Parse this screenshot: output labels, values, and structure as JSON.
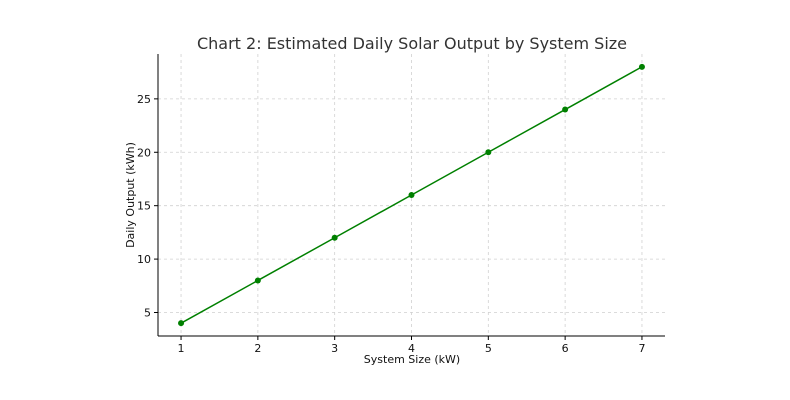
{
  "chart_data": {
    "type": "line",
    "title": "Chart 2: Estimated Daily Solar Output by System Size",
    "xlabel": "System Size (kW)",
    "ylabel": "Daily Output (kWh)",
    "x": [
      1,
      2,
      3,
      4,
      5,
      6,
      7
    ],
    "series": [
      {
        "values": [
          4,
          8,
          12,
          16,
          20,
          24,
          28
        ],
        "color": "#008000",
        "marker": "circle"
      }
    ],
    "xticks": [
      "1",
      "2",
      "3",
      "4",
      "5",
      "6",
      "7"
    ],
    "yticks": [
      "5",
      "10",
      "15",
      "20",
      "25"
    ],
    "xlim": [
      0.7,
      7.3
    ],
    "ylim": [
      2.8,
      29.2
    ],
    "grid": true,
    "grid_style": "dashed",
    "legend": "none"
  }
}
